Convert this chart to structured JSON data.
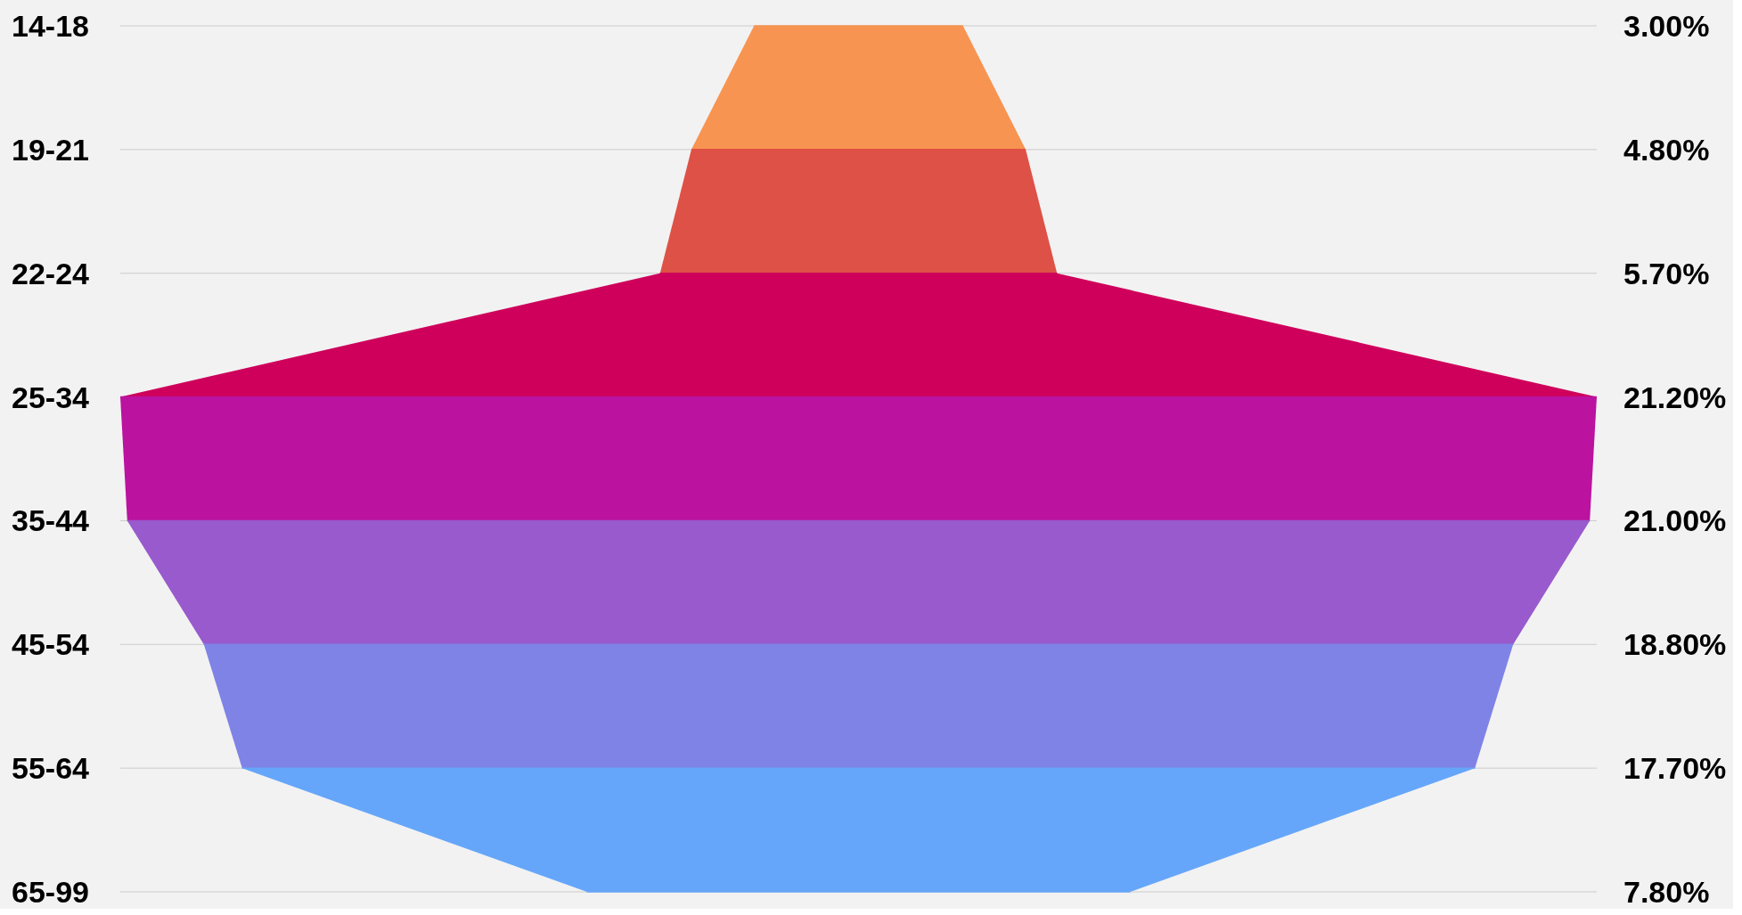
{
  "chart_data": {
    "type": "other",
    "categories": [
      "14-18",
      "19-21",
      "22-24",
      "25-34",
      "35-44",
      "45-54",
      "55-64",
      "65-99"
    ],
    "values": [
      3.0,
      4.8,
      5.7,
      21.2,
      21.0,
      18.8,
      17.7,
      7.8
    ],
    "value_labels": [
      "3.00%",
      "4.80%",
      "5.70%",
      "21.20%",
      "21.00%",
      "18.80%",
      "17.70%",
      "7.80%"
    ],
    "colors": [
      "#f79452",
      "#de5146",
      "#cf005b",
      "#bb129f",
      "#985acc",
      "#7f83e6",
      "#66a6fa",
      "#66a6fa"
    ]
  }
}
